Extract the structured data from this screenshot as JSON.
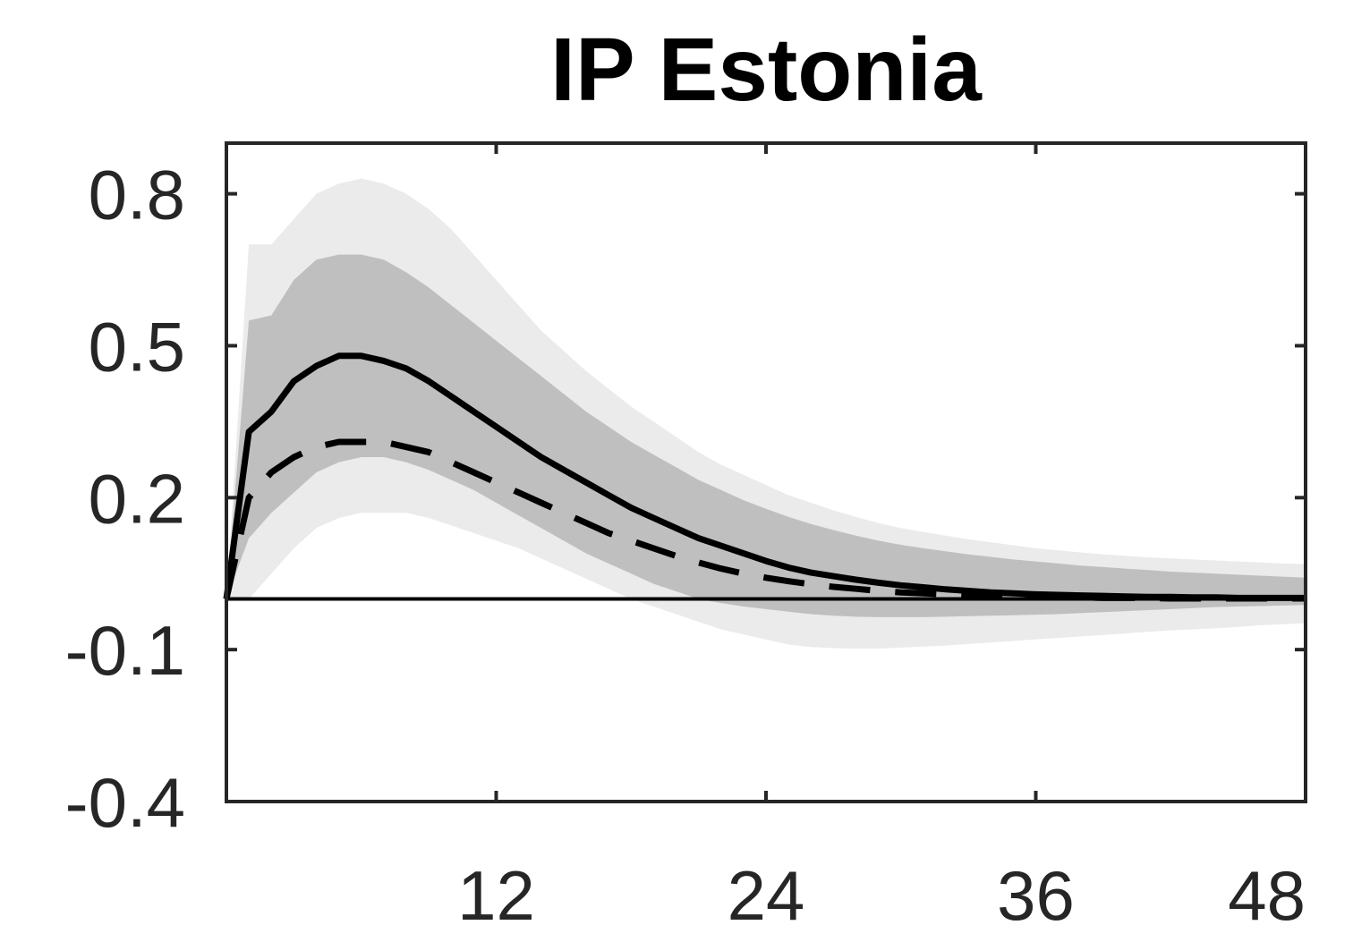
{
  "chart_data": {
    "type": "line",
    "title": "IP Estonia",
    "xlabel": "",
    "ylabel": "",
    "xlim": [
      0,
      48
    ],
    "ylim": [
      -0.4,
      0.9
    ],
    "xticks": [
      12,
      24,
      36,
      48
    ],
    "xtick_labels": [
      "12",
      "24",
      "36",
      "48"
    ],
    "yticks": [
      -0.4,
      -0.1,
      0.2,
      0.5,
      0.8
    ],
    "ytick_labels": [
      "-0.4",
      "-0.1",
      "0.2",
      "0.5",
      "0.8"
    ],
    "grid": false,
    "zero_line": true,
    "x": [
      0,
      1,
      2,
      3,
      4,
      5,
      6,
      7,
      8,
      9,
      10,
      11,
      12,
      13,
      14,
      15,
      16,
      17,
      18,
      19,
      20,
      21,
      22,
      23,
      24,
      25,
      26,
      27,
      28,
      29,
      30,
      31,
      32,
      33,
      34,
      35,
      36,
      37,
      38,
      39,
      40,
      41,
      42,
      43,
      44,
      45,
      46,
      47,
      48
    ],
    "series": [
      {
        "style": "solid",
        "color": "#000000",
        "values": [
          0,
          0.33,
          0.37,
          0.43,
          0.46,
          0.48,
          0.48,
          0.47,
          0.455,
          0.43,
          0.4,
          0.37,
          0.34,
          0.31,
          0.28,
          0.255,
          0.23,
          0.205,
          0.18,
          0.16,
          0.14,
          0.12,
          0.105,
          0.09,
          0.075,
          0.062,
          0.052,
          0.045,
          0.038,
          0.032,
          0.027,
          0.023,
          0.019,
          0.016,
          0.013,
          0.011,
          0.009,
          0.008,
          0.007,
          0.006,
          0.005,
          0.004,
          0.004,
          0.003,
          0.003,
          0.002,
          0.002,
          0.002,
          0.002
        ]
      },
      {
        "style": "dashed",
        "color": "#000000",
        "values": [
          0,
          0.2,
          0.25,
          0.28,
          0.3,
          0.31,
          0.31,
          0.31,
          0.3,
          0.29,
          0.27,
          0.25,
          0.23,
          0.21,
          0.19,
          0.17,
          0.15,
          0.13,
          0.115,
          0.1,
          0.085,
          0.072,
          0.06,
          0.05,
          0.042,
          0.035,
          0.029,
          0.024,
          0.02,
          0.016,
          0.013,
          0.011,
          0.009,
          0.007,
          0.006,
          0.005,
          0.004,
          0.003,
          0.003,
          0.002,
          0.002,
          0.002,
          0.001,
          0.001,
          0.001,
          0.001,
          0.001,
          0.001,
          0.001
        ]
      }
    ],
    "bands": [
      {
        "color": "#ebebeb",
        "upper": [
          0,
          0.7,
          0.7,
          0.75,
          0.8,
          0.82,
          0.83,
          0.82,
          0.8,
          0.77,
          0.73,
          0.68,
          0.63,
          0.58,
          0.53,
          0.49,
          0.45,
          0.415,
          0.38,
          0.35,
          0.32,
          0.29,
          0.265,
          0.245,
          0.225,
          0.205,
          0.19,
          0.175,
          0.162,
          0.15,
          0.14,
          0.132,
          0.125,
          0.118,
          0.112,
          0.106,
          0.1,
          0.096,
          0.092,
          0.088,
          0.085,
          0.082,
          0.08,
          0.078,
          0.076,
          0.074,
          0.072,
          0.07,
          0.069
        ],
        "lower": [
          0,
          0,
          0.05,
          0.1,
          0.14,
          0.16,
          0.17,
          0.17,
          0.17,
          0.16,
          0.145,
          0.13,
          0.115,
          0.1,
          0.08,
          0.06,
          0.04,
          0.02,
          0,
          -0.015,
          -0.03,
          -0.045,
          -0.06,
          -0.07,
          -0.08,
          -0.09,
          -0.095,
          -0.097,
          -0.098,
          -0.098,
          -0.096,
          -0.094,
          -0.092,
          -0.089,
          -0.086,
          -0.083,
          -0.08,
          -0.077,
          -0.074,
          -0.071,
          -0.068,
          -0.065,
          -0.062,
          -0.06,
          -0.058,
          -0.055,
          -0.052,
          -0.05,
          -0.048
        ]
      },
      {
        "color": "#bfbfbf",
        "upper": [
          0,
          0.55,
          0.56,
          0.63,
          0.67,
          0.68,
          0.68,
          0.67,
          0.645,
          0.615,
          0.58,
          0.545,
          0.51,
          0.475,
          0.44,
          0.405,
          0.37,
          0.34,
          0.31,
          0.285,
          0.26,
          0.235,
          0.215,
          0.195,
          0.178,
          0.162,
          0.148,
          0.136,
          0.125,
          0.115,
          0.107,
          0.1,
          0.094,
          0.088,
          0.083,
          0.078,
          0.074,
          0.07,
          0.066,
          0.063,
          0.06,
          0.057,
          0.054,
          0.052,
          0.05,
          0.048,
          0.046,
          0.044,
          0.042
        ],
        "lower": [
          0,
          0.12,
          0.17,
          0.21,
          0.25,
          0.27,
          0.28,
          0.28,
          0.27,
          0.255,
          0.235,
          0.215,
          0.19,
          0.165,
          0.14,
          0.115,
          0.09,
          0.07,
          0.05,
          0.03,
          0.015,
          0,
          -0.008,
          -0.015,
          -0.02,
          -0.025,
          -0.03,
          -0.033,
          -0.035,
          -0.036,
          -0.036,
          -0.036,
          -0.035,
          -0.034,
          -0.033,
          -0.032,
          -0.031,
          -0.03,
          -0.028,
          -0.026,
          -0.024,
          -0.022,
          -0.02,
          -0.018,
          -0.016,
          -0.015,
          -0.014,
          -0.013,
          -0.012
        ]
      }
    ]
  }
}
